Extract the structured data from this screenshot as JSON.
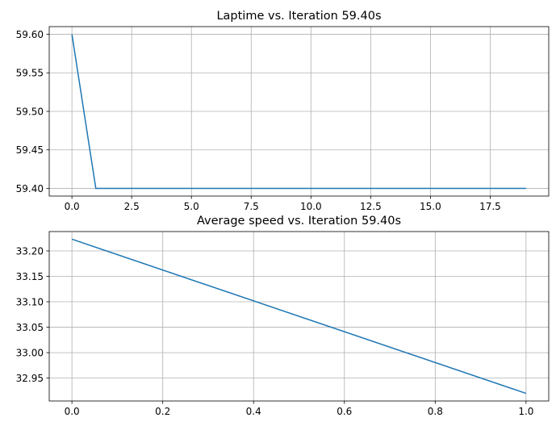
{
  "chart_data": [
    {
      "type": "line",
      "title": "Laptime vs. Iteration 59.40s",
      "xlabel": "",
      "ylabel": "",
      "xlim": [
        -0.95,
        19.95
      ],
      "ylim": [
        59.39,
        59.61
      ],
      "xticks": [
        0,
        2.5,
        5,
        7.5,
        10,
        12.5,
        15,
        17.5
      ],
      "xtick_labels": [
        "0.0",
        "2.5",
        "5.0",
        "7.5",
        "10.0",
        "12.5",
        "15.0",
        "17.5"
      ],
      "yticks": [
        59.4,
        59.45,
        59.5,
        59.55,
        59.6
      ],
      "ytick_labels": [
        "59.40",
        "59.45",
        "59.50",
        "59.55",
        "59.60"
      ],
      "grid": true,
      "series": [
        {
          "color": "#1f77b4",
          "x": [
            0,
            1,
            2,
            3,
            4,
            5,
            6,
            7,
            8,
            9,
            10,
            11,
            12,
            13,
            14,
            15,
            16,
            17,
            18,
            19
          ],
          "y": [
            59.6,
            59.4,
            59.4,
            59.4,
            59.4,
            59.4,
            59.4,
            59.4,
            59.4,
            59.4,
            59.4,
            59.4,
            59.4,
            59.4,
            59.4,
            59.4,
            59.4,
            59.4,
            59.4,
            59.4
          ]
        }
      ]
    },
    {
      "type": "line",
      "title": "Average speed vs. Iteration 59.40s",
      "xlabel": "",
      "ylabel": "",
      "xlim": [
        -0.05,
        1.05
      ],
      "ylim": [
        32.905,
        33.238
      ],
      "xticks": [
        0,
        0.2,
        0.4,
        0.6,
        0.8,
        1.0
      ],
      "xtick_labels": [
        "0.0",
        "0.2",
        "0.4",
        "0.6",
        "0.8",
        "1.0"
      ],
      "yticks": [
        32.95,
        33.0,
        33.05,
        33.1,
        33.15,
        33.2
      ],
      "ytick_labels": [
        "32.95",
        "33.00",
        "33.05",
        "33.10",
        "33.15",
        "33.20"
      ],
      "grid": true,
      "series": [
        {
          "color": "#1f77b4",
          "x": [
            0,
            1
          ],
          "y": [
            33.223,
            32.92
          ]
        }
      ]
    }
  ]
}
